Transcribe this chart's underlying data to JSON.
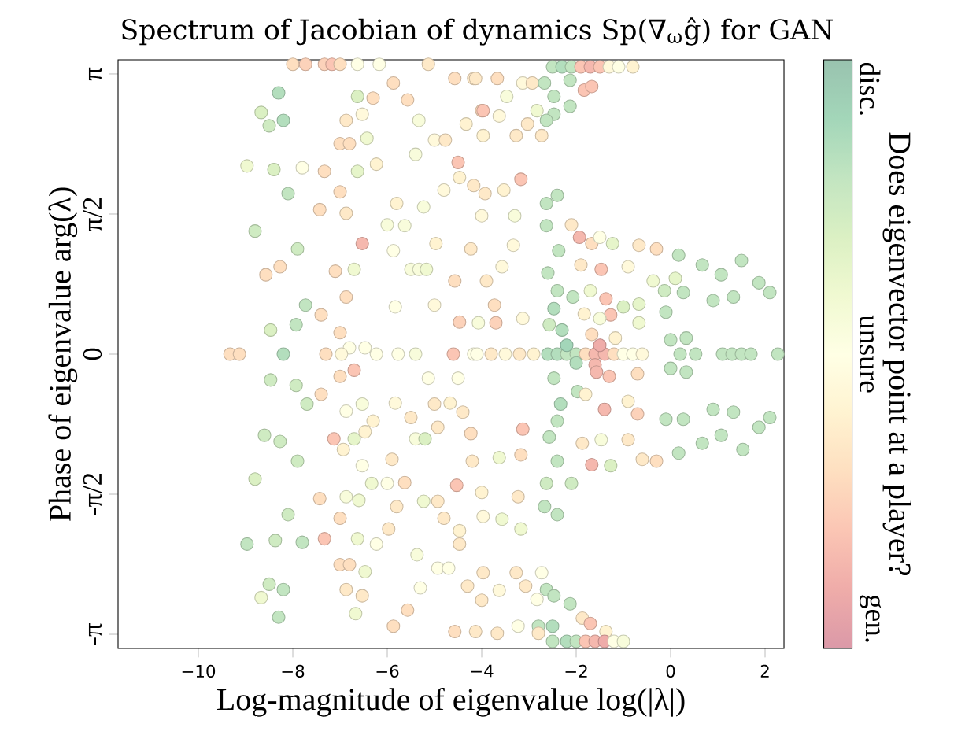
{
  "chart_data": {
    "type": "scatter",
    "title": "Spectrum of Jacobian of dynamics Sp(∇$_{ω}$ĝ) for GAN",
    "xlabel": "Log-magnitude of eigenvalue log(|λ|)",
    "ylabel": "Phase of eigenvalue arg(λ)",
    "clabel": "Does eigenvector point at a player?",
    "xlim": [
      -11.7,
      2.4
    ],
    "ylim": [
      -3.3,
      3.3
    ],
    "xticks": [
      {
        "value": -10,
        "label": "−10"
      },
      {
        "value": -8,
        "label": "−8"
      },
      {
        "value": -6,
        "label": "−6"
      },
      {
        "value": -4,
        "label": "−4"
      },
      {
        "value": -2,
        "label": "−2"
      },
      {
        "value": 0,
        "label": "0"
      },
      {
        "value": 2,
        "label": "2"
      }
    ],
    "yticks": [
      {
        "value": -3.1416,
        "label": "-π"
      },
      {
        "value": -1.5708,
        "label": "-π/2"
      },
      {
        "value": 0,
        "label": "0"
      },
      {
        "value": 1.5708,
        "label": "π/2"
      },
      {
        "value": 3.1416,
        "label": "π"
      }
    ],
    "clim": [
      0,
      1
    ],
    "cticks": [
      {
        "value": 0.05,
        "label": "gen."
      },
      {
        "value": 0.5,
        "label": "unsure"
      },
      {
        "value": 0.95,
        "label": "disc."
      }
    ],
    "marker": "circle",
    "x": [
      -8.3,
      -8.67,
      -8.5,
      -8.2,
      -6.63,
      -6.3,
      -5.87,
      -5.57,
      -6.87,
      -6.53,
      -7.0,
      -6.8,
      -6.43,
      -8.97,
      -8.4,
      -7.8,
      -7.33,
      -6.63,
      -6.23,
      -8.1,
      -7.0,
      -7.43,
      -6.87,
      -8.8,
      -6.53,
      -7.9,
      -8.57,
      -8.27,
      -7.1,
      -6.7,
      -6.87,
      -7.73,
      -8.47,
      -7.93,
      -7.4,
      -7.0,
      -6.8,
      -6.47,
      -5.83,
      -5.5,
      -4.97,
      -4.5,
      -4.57,
      -4.17,
      -4.0,
      -5.33,
      -4.33,
      -5.0,
      -4.77,
      -5.4,
      -4.47,
      -4.17,
      -4.8,
      -5.8,
      -5.23,
      -6.0,
      -5.63,
      -4.23,
      -5.33,
      -5.17,
      -5.87,
      -4.57,
      -4.47,
      -5.0,
      -4.07,
      -9.33,
      -9.13,
      -8.2,
      -7.3,
      -6.97,
      -6.23,
      -5.77,
      -5.4,
      -4.6,
      -4.17,
      -8.0,
      -7.73,
      -7.33,
      -7.17,
      -7.0,
      -6.63,
      -6.17,
      -5.13,
      -2.5,
      -2.3,
      -2.1,
      -1.9,
      -1.7,
      -1.5,
      -1.3,
      -1.1,
      -0.8,
      -8.47,
      -7.93,
      -7.7,
      -7.4,
      -6.7,
      -7.0,
      -8.6,
      -8.27,
      -7.9,
      -8.8,
      -7.13,
      -6.7,
      -6.93,
      -6.47,
      -6.3,
      -6.87,
      -6.53,
      -5.83,
      -5.5,
      -5.13,
      -4.5,
      -5.4,
      -5.2,
      -5.0,
      -4.67,
      -4.4,
      -4.23,
      -4.93,
      -5.9,
      -6.53,
      -6.33,
      -6.0,
      -5.63,
      -7.43,
      -6.87,
      -6.6,
      -5.8,
      -5.23,
      -4.93,
      -4.53,
      -4.2,
      -4.8,
      -4.47,
      -4.47,
      -8.1,
      -8.97,
      -8.37,
      -7.8,
      -7.33,
      -7.0,
      -6.63,
      -6.23,
      -5.97,
      -5.37,
      -7.0,
      -6.8,
      -6.47,
      -6.87,
      -6.53,
      -5.3,
      -4.93,
      -4.7,
      -4.3,
      -8.5,
      -8.67,
      -8.2,
      -8.3,
      -6.67,
      -5.57,
      -5.87,
      -4.57,
      -4.13,
      -4.13,
      -3.67,
      -3.13,
      -2.93,
      -2.67,
      -2.47,
      -2.13,
      -1.83,
      -1.67,
      -3.47,
      -3.97,
      -3.63,
      -2.83,
      -2.47,
      -2.13,
      -2.63,
      -3.03,
      -3.27,
      -2.73,
      -3.97,
      -3.17,
      -3.53,
      -3.93,
      -2.63,
      -2.4,
      -2.63,
      -2.1,
      -4.0,
      -3.3,
      -1.93,
      -1.67,
      -1.5,
      -1.23,
      -2.37,
      -0.67,
      -0.3,
      0.17,
      0.67,
      1.5,
      1.07,
      1.87,
      2.1,
      0.9,
      1.33,
      0.27,
      -0.13,
      0.1,
      -0.37,
      -0.9,
      -1.47,
      -1.9,
      -2.6,
      -2.4,
      -2.07,
      -1.7,
      -1.37,
      -1.27,
      -1.0,
      -0.67,
      -0.1,
      -2.47,
      -1.83,
      -1.5,
      -0.67,
      0.0,
      0.33,
      -2.57,
      -2.3,
      -1.67,
      -1.17,
      -3.73,
      -3.7,
      -3.13,
      -3.57,
      -3.9,
      -3.33,
      -2.6,
      -2.4,
      -2.2,
      -2.0,
      -1.8,
      -1.6,
      -1.4,
      -1.2,
      -1.0,
      -0.8,
      -0.6,
      0.2,
      0.53,
      1.1,
      1.3,
      1.5,
      1.7,
      2.27,
      -4.1,
      -3.8,
      -3.5,
      -3.2,
      -2.9,
      -2.2,
      -1.5,
      -2.0,
      -1.6,
      -2.47,
      -1.97,
      -1.57,
      -1.3,
      -0.7,
      0.0,
      0.33,
      -2.33,
      -1.8,
      -1.4,
      -0.9,
      -0.7,
      -0.1,
      0.27,
      0.9,
      1.33,
      2.1,
      1.87,
      1.07,
      0.67,
      1.53,
      0.17,
      -0.3,
      -0.6,
      -2.4,
      -2.57,
      -3.13,
      -1.87,
      -1.47,
      -0.9,
      -2.4,
      -1.67,
      -1.27,
      -3.17,
      -3.63,
      -2.63,
      -2.1,
      -2.67,
      -2.4,
      -4.0,
      -3.23,
      -3.17,
      -3.57,
      -3.97,
      -3.97,
      -3.27,
      -2.73,
      -2.63,
      -2.47,
      -2.13,
      -3.07,
      -3.63,
      -4.0,
      -2.83,
      -2.8,
      -2.5,
      -3.23,
      -3.67,
      -1.87,
      -1.7,
      -1.37,
      -2.8,
      -2.5,
      -2.2,
      -2.0,
      -1.8,
      -1.6,
      -1.4,
      -1.2,
      -1.0
    ],
    "values": [
      2.93,
      2.71,
      2.56,
      2.62,
      2.89,
      2.87,
      3.04,
      2.85,
      2.62,
      2.69,
      2.36,
      2.36,
      2.42,
      2.11,
      2.07,
      2.09,
      2.05,
      2.05,
      2.13,
      1.8,
      1.82,
      1.62,
      1.58,
      1.38,
      1.24,
      1.18,
      0.89,
      0.98,
      0.93,
      0.95,
      0.64,
      0.55,
      0.27,
      0.33,
      0.44,
      0.24,
      0.07,
      0.07,
      0.53,
      0.95,
      1.24,
      2.15,
      3.09,
      3.09,
      2.73,
      2.62,
      2.58,
      2.4,
      2.4,
      2.24,
      1.98,
      1.89,
      1.84,
      1.69,
      1.65,
      1.45,
      1.44,
      1.18,
      0.95,
      0.95,
      1.16,
      0.82,
      0.36,
      0.55,
      0.35,
      0,
      0,
      0,
      0,
      0,
      0,
      0,
      0,
      0,
      0,
      3.25,
      3.25,
      3.25,
      3.25,
      3.25,
      3.25,
      3.25,
      3.25,
      3.22,
      3.22,
      3.22,
      3.22,
      3.22,
      3.22,
      3.22,
      3.22,
      3.22,
      -0.29,
      -0.35,
      -0.56,
      -0.45,
      -0.18,
      -0.25,
      -0.91,
      -0.98,
      -1.2,
      -1.4,
      -0.95,
      -0.95,
      -1.07,
      -0.87,
      -0.75,
      -0.64,
      -0.56,
      -0.55,
      -0.71,
      -0.27,
      -0.27,
      -0.95,
      -0.95,
      -0.56,
      -0.55,
      -0.65,
      -0.89,
      -0.82,
      -1.18,
      -1.25,
      -1.45,
      -1.45,
      -1.44,
      -1.62,
      -1.6,
      -1.64,
      -1.71,
      -1.65,
      -1.65,
      -1.47,
      -1.2,
      -1.84,
      -1.98,
      -2.13,
      -1.8,
      -2.13,
      -2.09,
      -2.11,
      -2.07,
      -1.84,
      -2.07,
      -2.13,
      -1.96,
      -2.25,
      -2.36,
      -2.36,
      -2.44,
      -2.64,
      -2.71,
      -2.62,
      -2.4,
      -2.4,
      -2.6,
      -2.58,
      -2.73,
      -2.64,
      -2.95,
      -2.91,
      -2.87,
      -3.05,
      -3.11,
      -3.11,
      3.09,
      3.09,
      3.04,
      3.04,
      3.04,
      2.89,
      3.07,
      2.96,
      3.0,
      2.89,
      2.73,
      2.67,
      2.73,
      2.69,
      2.78,
      2.62,
      2.58,
      2.45,
      2.45,
      2.45,
      1.96,
      1.84,
      1.8,
      1.69,
      1.78,
      1.44,
      1.45,
      1.55,
      1.55,
      1.31,
      1.24,
      1.31,
      1.24,
      1.16,
      1.22,
      1.18,
      1.11,
      1.0,
      1.05,
      0.89,
      0.8,
      0.69,
      0.6,
      0.64,
      0.69,
      0.71,
      0.85,
      0.82,
      0.98,
      0.95,
      1.0,
      0.91,
      0.71,
      0.64,
      0.71,
      0.62,
      0.44,
      0.53,
      0.56,
      0.47,
      0.51,
      0.45,
      0.4,
      0.35,
      0.16,
      0.18,
      0.33,
      0.27,
      0.22,
      0.18,
      0.55,
      0.35,
      0.4,
      0.98,
      0.82,
      1.22,
      0,
      0,
      0,
      0,
      0,
      0,
      0,
      0,
      0,
      0,
      0,
      0,
      0,
      0,
      0,
      0,
      0,
      0,
      0,
      0,
      0,
      0,
      0,
      0.1,
      0.1,
      -0.1,
      -0.12,
      -0.27,
      -0.42,
      -0.2,
      -0.25,
      -0.22,
      -0.16,
      -0.2,
      -0.56,
      -0.45,
      -0.62,
      -0.53,
      -0.67,
      -0.73,
      -0.73,
      -0.62,
      -0.65,
      -0.71,
      -0.82,
      -0.91,
      -1.0,
      -1.07,
      -1.11,
      -1.2,
      -1.18,
      -0.75,
      -0.93,
      -0.84,
      -1.0,
      -0.96,
      -0.96,
      -1.2,
      -1.24,
      -1.25,
      -1.13,
      -1.16,
      -1.45,
      -1.45,
      -1.71,
      -1.8,
      -1.55,
      -1.6,
      -1.96,
      -1.85,
      -1.82,
      -2.45,
      -2.45,
      -2.45,
      -2.64,
      -2.71,
      -2.8,
      -2.6,
      -2.65,
      -2.76,
      -2.75,
      -3.05,
      -3.05,
      -3.05,
      -3.13,
      -2.96,
      -3.02,
      -3.11,
      -3.13,
      -3.22,
      -3.22,
      -3.22,
      -3.22,
      -3.22,
      -3.22,
      -3.22,
      -3.22
    ],
    "cvalues": [
      0.85,
      0.7,
      0.75,
      0.85,
      0.7,
      0.3,
      0.3,
      0.3,
      0.35,
      0.45,
      0.3,
      0.3,
      0.6,
      0.6,
      0.7,
      0.5,
      0.3,
      0.65,
      0.4,
      0.8,
      0.3,
      0.3,
      0.35,
      0.75,
      0.15,
      0.75,
      0.3,
      0.3,
      0.3,
      0.6,
      0.3,
      0.8,
      0.7,
      0.8,
      0.3,
      0.3,
      0.5,
      0.5,
      0.5,
      0.55,
      0.4,
      0.2,
      0.3,
      0.35,
      0.3,
      0.55,
      0.4,
      0.45,
      0.35,
      0.55,
      0.4,
      0.35,
      0.45,
      0.4,
      0.55,
      0.55,
      0.55,
      0.35,
      0.55,
      0.6,
      0.5,
      0.3,
      0.25,
      0.45,
      0.55,
      0.3,
      0.3,
      0.85,
      0.3,
      0.45,
      0.5,
      0.5,
      0.55,
      0.2,
      0.5,
      0.3,
      0.25,
      0.25,
      0.2,
      0.3,
      0.5,
      0.5,
      0.35,
      0.8,
      0.85,
      0.8,
      0.2,
      0.15,
      0.2,
      0.45,
      0.5,
      0.4,
      0.75,
      0.75,
      0.75,
      0.3,
      0.2,
      0.3,
      0.75,
      0.75,
      0.75,
      0.7,
      0.2,
      0.65,
      0.4,
      0.4,
      0.4,
      0.5,
      0.55,
      0.45,
      0.35,
      0.5,
      0.5,
      0.55,
      0.7,
      0.35,
      0.4,
      0.35,
      0.3,
      0.35,
      0.35,
      0.5,
      0.6,
      0.5,
      0.3,
      0.3,
      0.55,
      0.6,
      0.35,
      0.6,
      0.35,
      0.2,
      0.35,
      0.35,
      0.4,
      0.35,
      0.75,
      0.8,
      0.75,
      0.8,
      0.2,
      0.3,
      0.6,
      0.5,
      0.35,
      0.55,
      0.3,
      0.3,
      0.6,
      0.35,
      0.35,
      0.5,
      0.5,
      0.5,
      0.35,
      0.75,
      0.6,
      0.8,
      0.8,
      0.6,
      0.3,
      0.3,
      0.3,
      0.35,
      0.35,
      0.3,
      0.45,
      0.35,
      0.8,
      0.8,
      0.8,
      0.2,
      0.2,
      0.55,
      0.2,
      0.45,
      0.6,
      0.8,
      0.8,
      0.8,
      0.35,
      0.35,
      0.35,
      0.4,
      0.2,
      0.4,
      0.35,
      0.8,
      0.8,
      0.8,
      0.35,
      0.45,
      0.55,
      0.15,
      0.3,
      0.5,
      0.65,
      0.8,
      0.35,
      0.3,
      0.8,
      0.8,
      0.8,
      0.8,
      0.8,
      0.8,
      0.8,
      0.8,
      0.8,
      0.75,
      0.65,
      0.6,
      0.45,
      0.2,
      0.35,
      0.8,
      0.8,
      0.8,
      0.6,
      0.2,
      0.2,
      0.7,
      0.65,
      0.8,
      0.85,
      0.4,
      0.55,
      0.6,
      0.8,
      0.8,
      0.75,
      0.85,
      0.3,
      0.4,
      0.3,
      0.25,
      0.45,
      0.45,
      0.35,
      0.45,
      0.85,
      0.85,
      0.8,
      0.8,
      0.3,
      0.15,
      0.15,
      0.3,
      0.5,
      0.5,
      0.45,
      0.8,
      0.8,
      0.8,
      0.8,
      0.8,
      0.8,
      0.8,
      0.5,
      0.35,
      0.45,
      0.35,
      0.4,
      0.9,
      0.1,
      0.85,
      0.15,
      0.8,
      0.8,
      0.15,
      0.2,
      0.3,
      0.8,
      0.8,
      0.85,
      0.4,
      0.15,
      0.4,
      0.25,
      0.8,
      0.8,
      0.8,
      0.8,
      0.8,
      0.8,
      0.8,
      0.8,
      0.8,
      0.8,
      0.3,
      0.35,
      0.8,
      0.8,
      0.2,
      0.35,
      0.55,
      0.35,
      0.8,
      0.15,
      0.7,
      0.3,
      0.6,
      0.75,
      0.75,
      0.8,
      0.8,
      0.4,
      0.35,
      0.6,
      0.6,
      0.45,
      0.35,
      0.35,
      0.5,
      0.8,
      0.8,
      0.8,
      0.35,
      0.45,
      0.35,
      0.5,
      0.8,
      0.85,
      0.5,
      0.35,
      0.35,
      0.2,
      0.4,
      0.35,
      0.8,
      0.85,
      0.8,
      0.2,
      0.15,
      0.1,
      0.5,
      0.55
    ]
  }
}
